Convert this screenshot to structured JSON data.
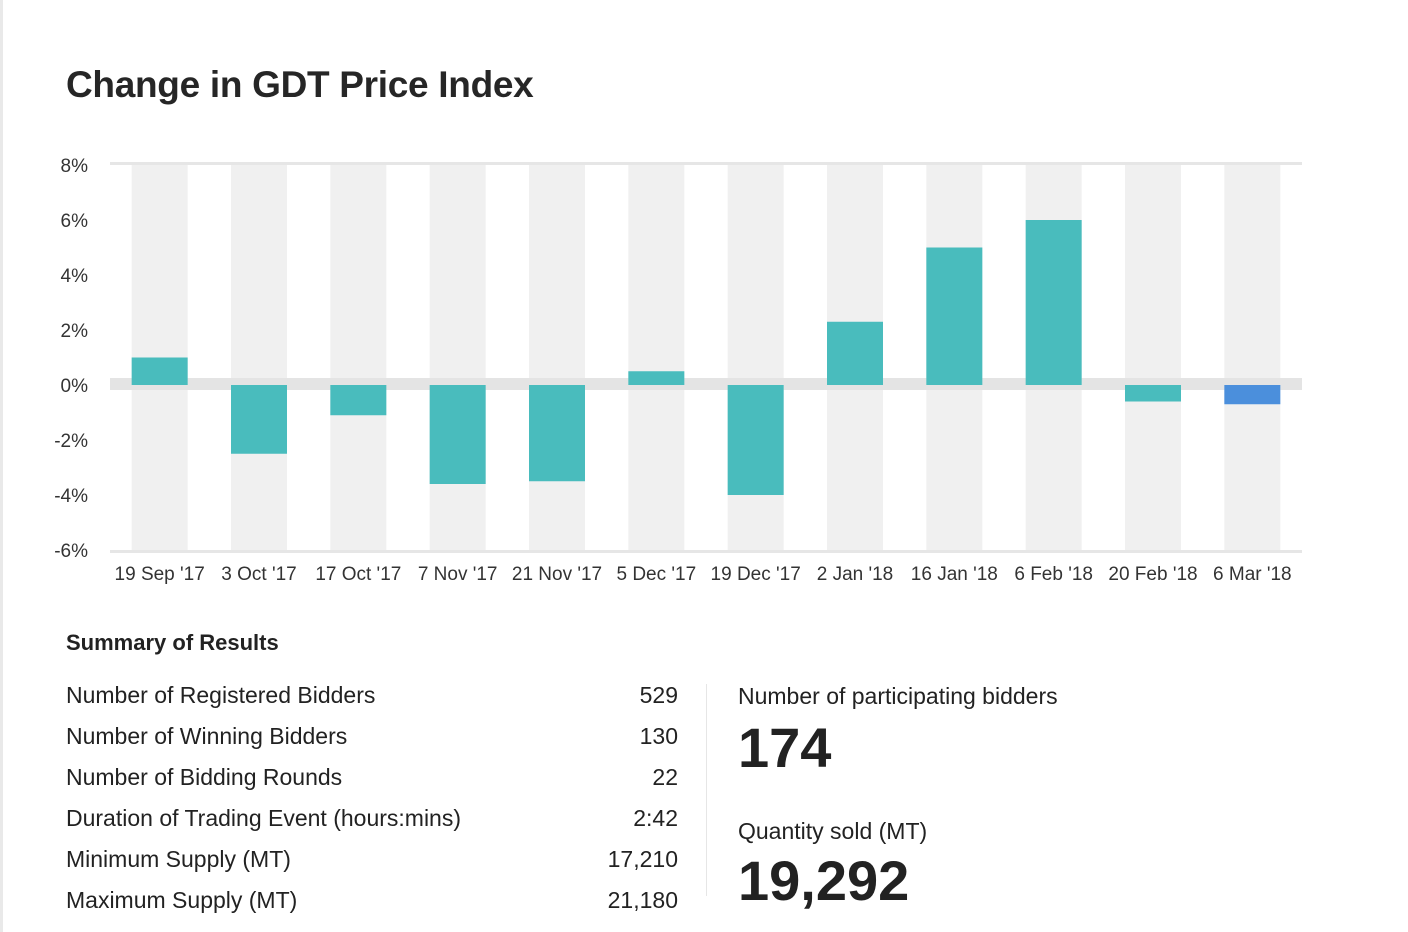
{
  "page": {
    "title": "Change in GDT Price Index"
  },
  "colors": {
    "positive": "#49bcbd",
    "current": "#4b8fdc",
    "stripe": "#f0f0f0",
    "zero_band": "#e4e4e4"
  },
  "chart_data": {
    "type": "bar",
    "title": "Change in GDT Price Index",
    "xlabel": "",
    "ylabel": "",
    "ylim": [
      -6,
      8
    ],
    "yticks": [
      8,
      6,
      4,
      2,
      0,
      -2,
      -4,
      -6
    ],
    "ytick_labels": [
      "8%",
      "6%",
      "4%",
      "2%",
      "0%",
      "-2%",
      "-4%",
      "-6%"
    ],
    "categories": [
      "19 Sep '17",
      "3 Oct '17",
      "17 Oct '17",
      "7 Nov '17",
      "21 Nov '17",
      "5 Dec '17",
      "19 Dec '17",
      "2 Jan '18",
      "16 Jan '18",
      "6 Feb '18",
      "20 Feb '18",
      "6 Mar '18"
    ],
    "values": [
      1.0,
      -2.5,
      -1.1,
      -3.6,
      -3.5,
      0.5,
      -4.0,
      2.3,
      5.0,
      6.0,
      -0.6,
      -0.7
    ],
    "highlight_last": true,
    "grid": false,
    "legend": "none"
  },
  "summary": {
    "title": "Summary of Results",
    "rows": [
      {
        "label": "Number of Registered Bidders",
        "value": "529"
      },
      {
        "label": "Number of Winning Bidders",
        "value": "130"
      },
      {
        "label": "Number of Bidding Rounds",
        "value": "22"
      },
      {
        "label": "Duration of Trading Event (hours:mins)",
        "value": "2:42"
      },
      {
        "label": "Minimum Supply (MT)",
        "value": "17,210"
      },
      {
        "label": "Maximum Supply (MT)",
        "value": "21,180"
      }
    ]
  },
  "kpis": {
    "participating_label": "Number of participating bidders",
    "participating_value": "174",
    "quantity_label": "Quantity sold (MT)",
    "quantity_value": "19,292"
  }
}
